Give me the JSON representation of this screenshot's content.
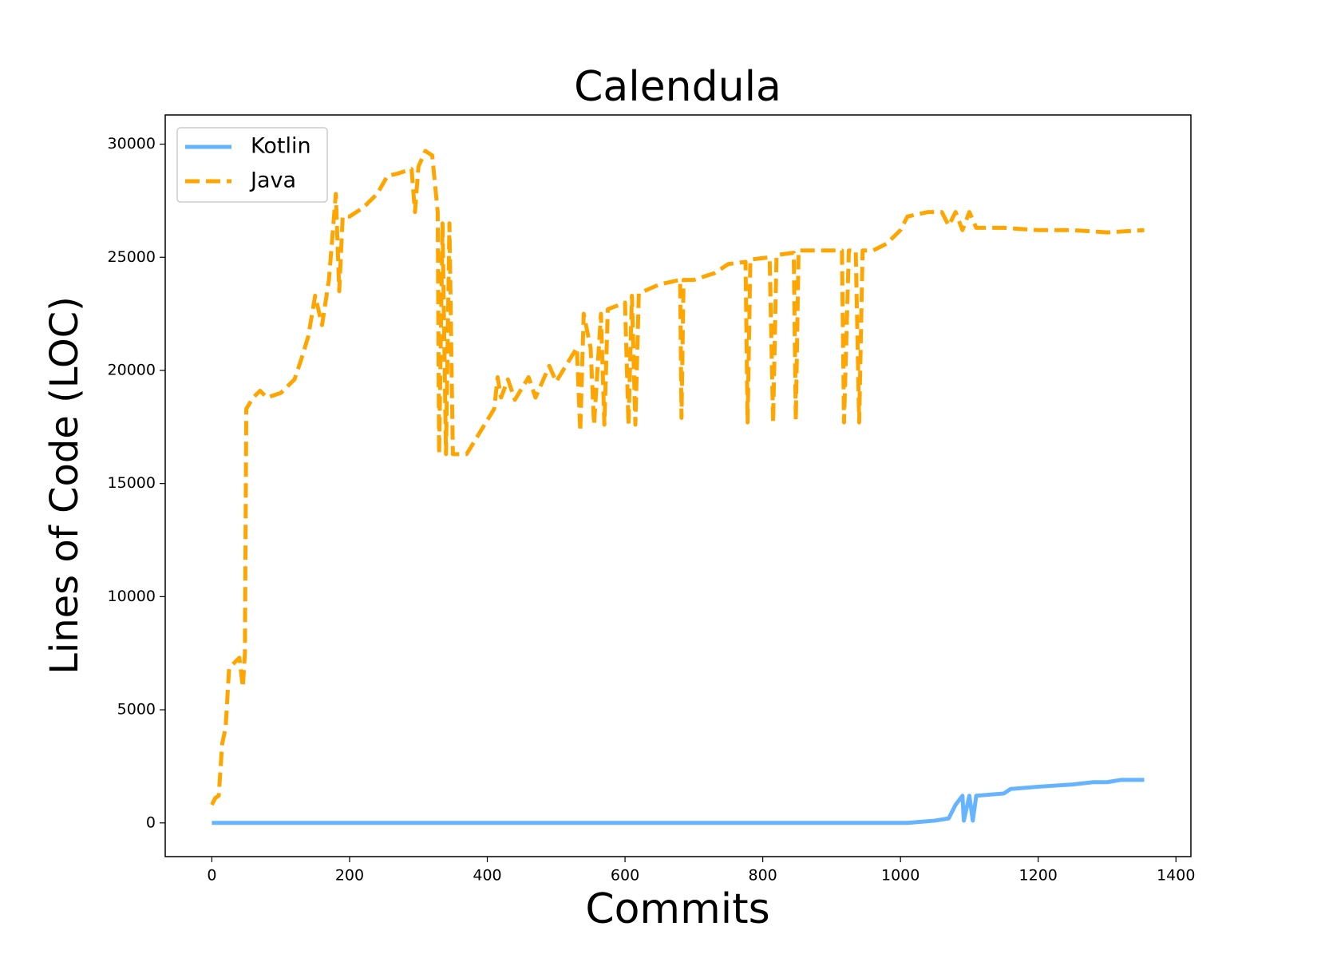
{
  "chart_data": {
    "type": "line",
    "title": "Calendula",
    "x_label": "Commits",
    "y_label": "Lines of Code (LOC)",
    "xlim": [
      -67.7,
      1421.7
    ],
    "ylim": [
      -1490,
      31290
    ],
    "xticks": [
      0,
      200,
      400,
      600,
      800,
      1000,
      1200,
      1400
    ],
    "yticks": [
      0,
      5000,
      10000,
      15000,
      20000,
      25000,
      30000
    ],
    "legend": "upper left",
    "series": [
      {
        "name": "Kotlin",
        "color": "#66b3ff",
        "linestyle": "solid",
        "x": [
          0,
          1010,
          1050,
          1070,
          1080,
          1090,
          1092,
          1100,
          1105,
          1110,
          1150,
          1160,
          1200,
          1250,
          1280,
          1300,
          1320,
          1354
        ],
        "values": [
          0,
          0,
          100,
          200,
          800,
          1200,
          100,
          1200,
          100,
          1200,
          1300,
          1500,
          1600,
          1700,
          1800,
          1800,
          1900,
          1900
        ]
      },
      {
        "name": "Java",
        "color": "#ffa500",
        "linestyle": "dashed",
        "x": [
          0,
          5,
          10,
          15,
          20,
          25,
          30,
          40,
          45,
          48,
          50,
          60,
          70,
          80,
          100,
          120,
          130,
          140,
          150,
          160,
          170,
          180,
          185,
          190,
          200,
          220,
          240,
          255,
          270,
          290,
          295,
          300,
          310,
          320,
          328,
          330,
          335,
          340,
          345,
          350,
          370,
          380,
          400,
          410,
          415,
          420,
          430,
          440,
          460,
          470,
          490,
          500,
          520,
          530,
          535,
          540,
          550,
          555,
          565,
          570,
          575,
          600,
          605,
          610,
          615,
          620,
          650,
          680,
          682,
          685,
          700,
          730,
          750,
          775,
          778,
          782,
          810,
          815,
          820,
          845,
          848,
          852,
          900,
          915,
          918,
          925,
          935,
          940,
          945,
          960,
          980,
          1000,
          1010,
          1040,
          1060,
          1070,
          1080,
          1090,
          1100,
          1110,
          1150,
          1200,
          1250,
          1300,
          1354
        ],
        "values": [
          800,
          1100,
          1200,
          3500,
          4200,
          6800,
          7000,
          7300,
          6000,
          7500,
          18300,
          18800,
          19100,
          18800,
          19000,
          19600,
          20500,
          21500,
          23300,
          22000,
          24000,
          27800,
          23500,
          26800,
          26800,
          27200,
          27800,
          28600,
          28700,
          28900,
          27000,
          29000,
          29700,
          29500,
          27000,
          16300,
          26500,
          16300,
          26500,
          16300,
          16300,
          16800,
          17800,
          18300,
          19700,
          18800,
          19600,
          18700,
          19700,
          18800,
          20200,
          19500,
          20500,
          21000,
          17300,
          22500,
          21000,
          17600,
          22500,
          17600,
          22700,
          23000,
          17600,
          23300,
          17600,
          23400,
          23800,
          24000,
          17900,
          24000,
          24000,
          24300,
          24700,
          24800,
          17700,
          24900,
          25000,
          17700,
          25100,
          25200,
          17800,
          25300,
          25300,
          25300,
          17700,
          25300,
          25300,
          17700,
          25300,
          25300,
          25600,
          26200,
          26800,
          27000,
          27000,
          26400,
          27000,
          26200,
          27000,
          26300,
          26300,
          26200,
          26200,
          26100,
          26200
        ]
      }
    ]
  }
}
